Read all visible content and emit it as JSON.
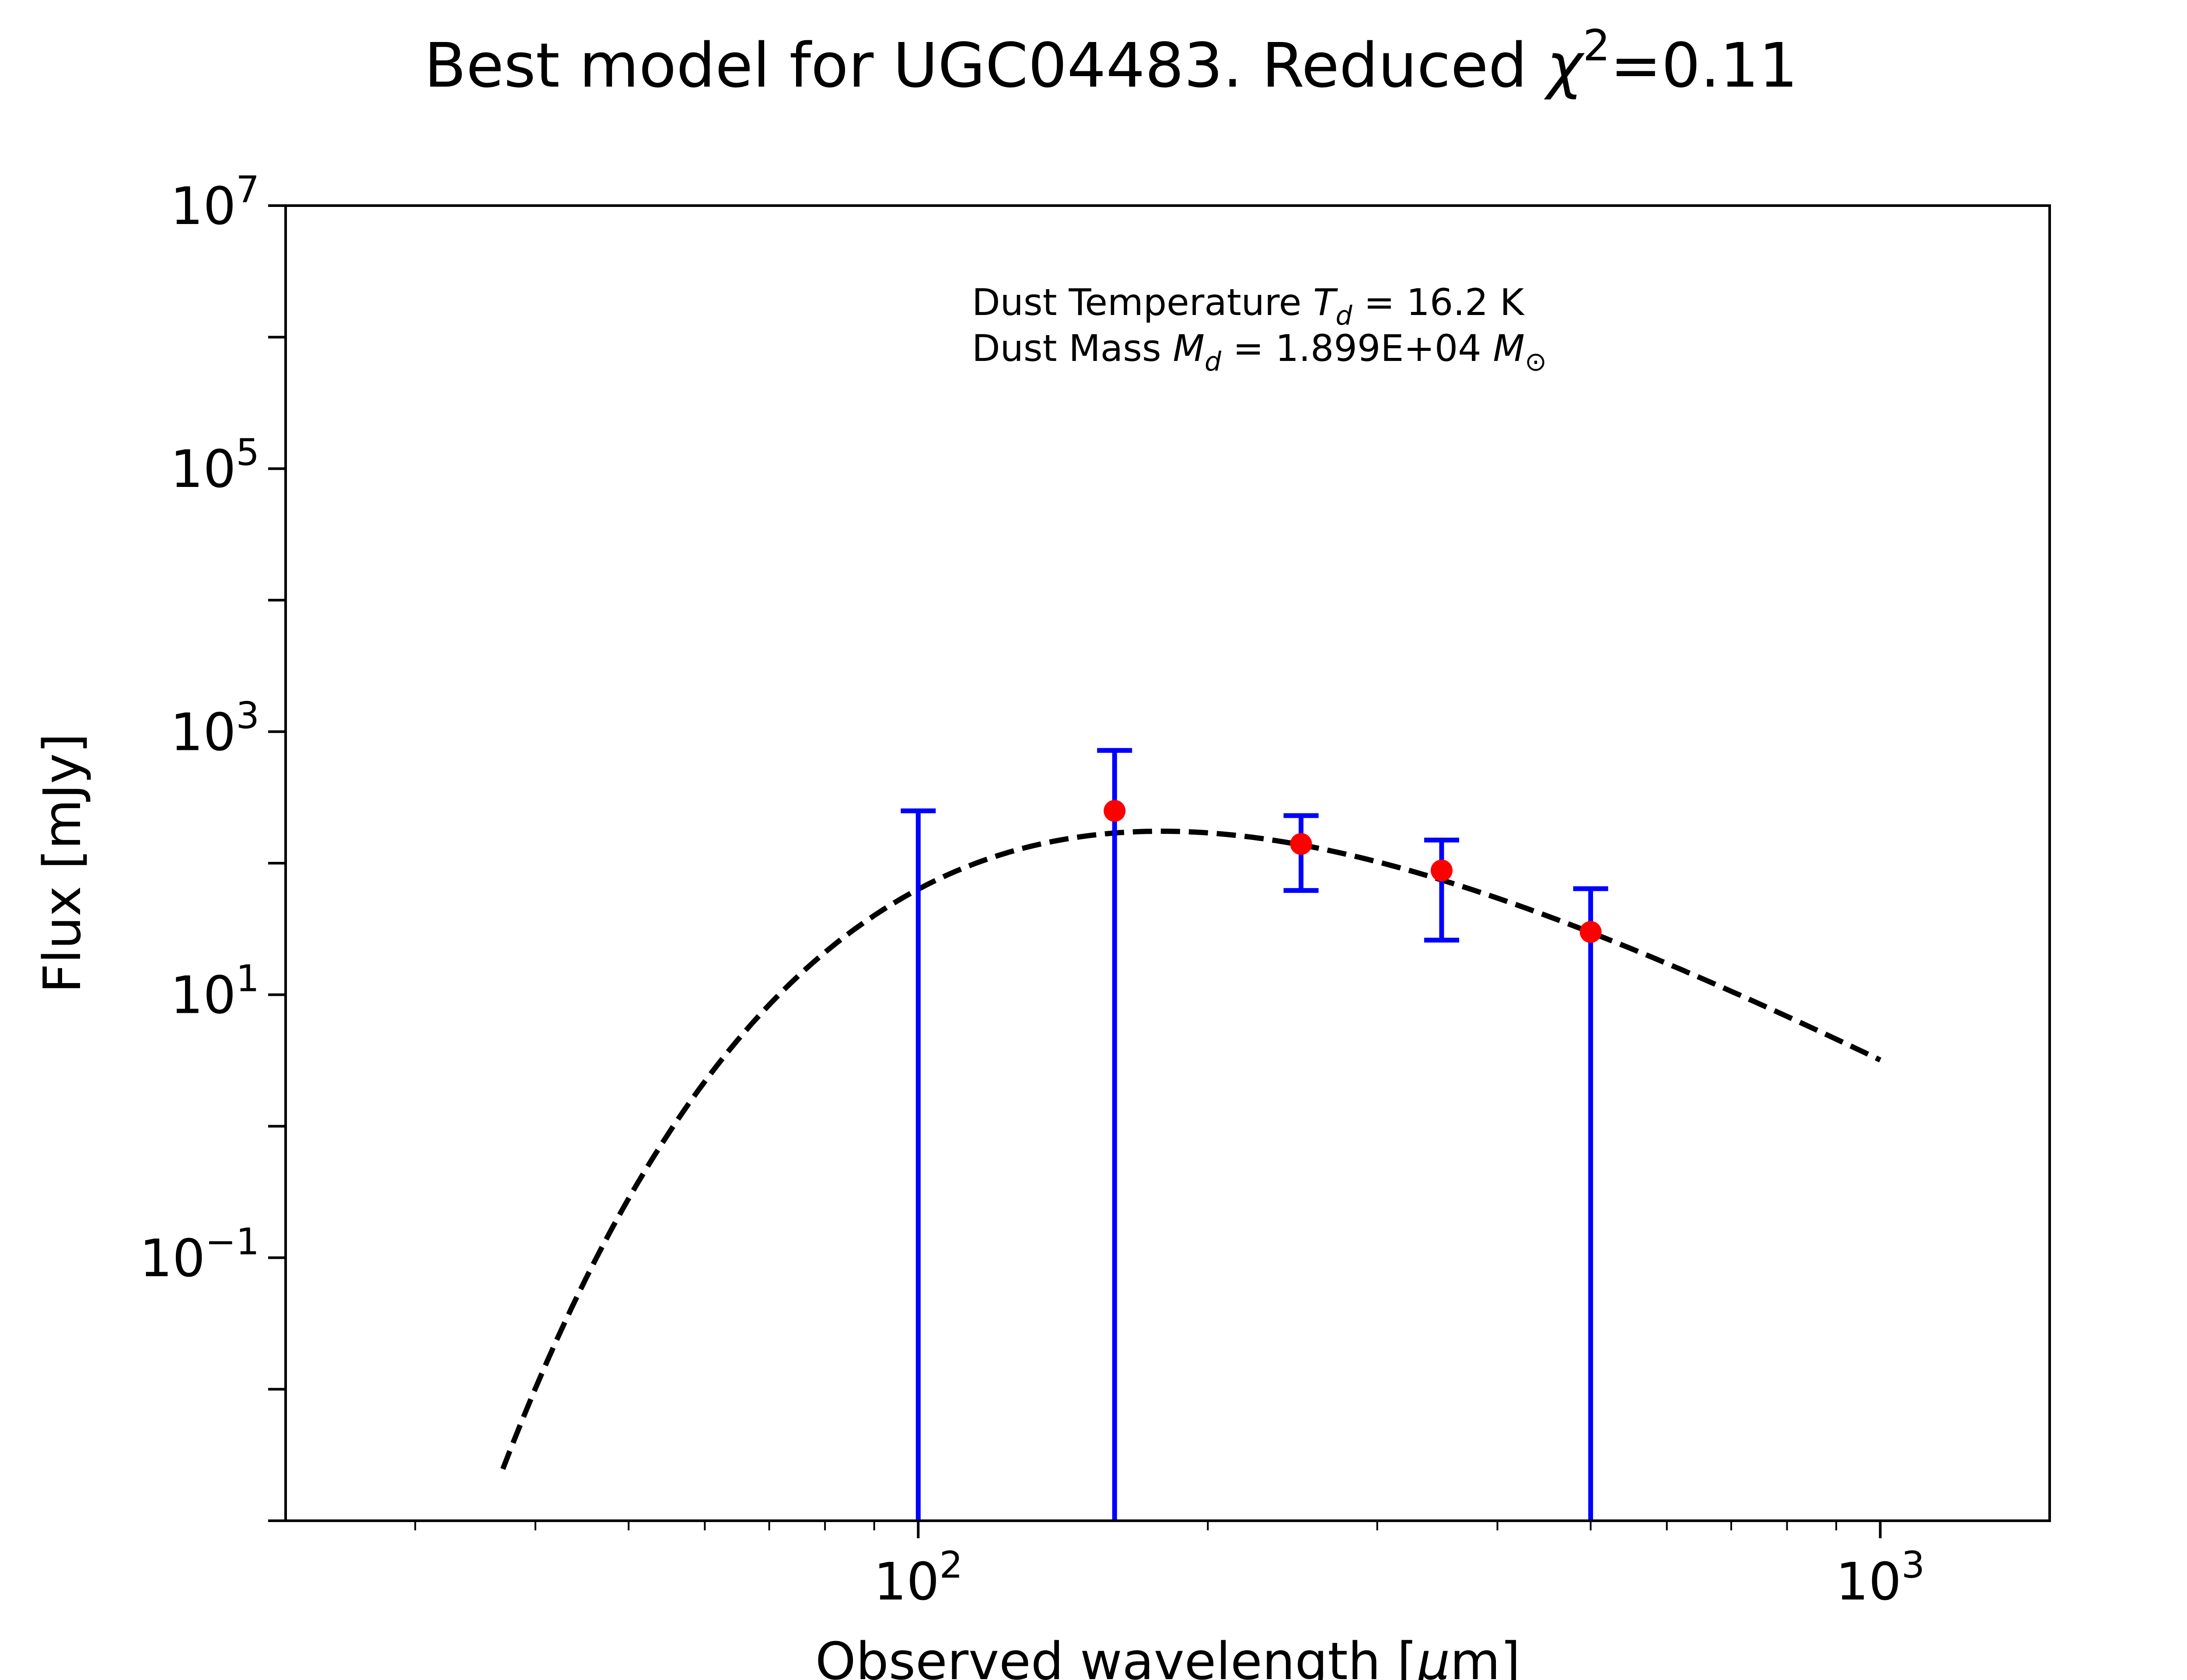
{
  "chart_data": {
    "type": "scatter",
    "title": {
      "prefix": "Best model for UGC04483. Reduced ",
      "chi_symbol": "χ",
      "superscript": "2",
      "value": "=0.11"
    },
    "xlabel": {
      "prefix": "Observed wavelength [",
      "symbol": "μ",
      "suffix": "m]"
    },
    "ylabel": "Flux [mJy]",
    "xscale": "log",
    "yscale": "log",
    "xlim": [
      22,
      1500
    ],
    "ylim": [
      0.001,
      10000000
    ],
    "grid": false,
    "x_major_ticks": [
      {
        "value": 100,
        "base": "10",
        "exp": "2"
      },
      {
        "value": 1000,
        "base": "10",
        "exp": "3"
      }
    ],
    "y_major_ticks": [
      {
        "value": 0.1,
        "base": "10",
        "exp": "−1"
      },
      {
        "value": 10,
        "base": "10",
        "exp": "1"
      },
      {
        "value": 1000,
        "base": "10",
        "exp": "3"
      },
      {
        "value": 100000,
        "base": "10",
        "exp": "5"
      },
      {
        "value": 10000000,
        "base": "10",
        "exp": "7"
      }
    ],
    "annotation": {
      "line1": {
        "prefix": "Dust Temperature ",
        "sym": "T",
        "sub": "d",
        "value": " = 16.2 K"
      },
      "line2": {
        "prefix": "Dust Mass ",
        "sym": "M",
        "sub": "d",
        "value": " = 1.899E+04 ",
        "unit_sym": "M",
        "unit_sub": "⊙"
      }
    },
    "observations": {
      "color": "#ff0000",
      "errorbar_color": "#0000ff",
      "points": [
        {
          "x": 100,
          "y": null,
          "y_low": 0.001,
          "y_high": 250
        },
        {
          "x": 160,
          "y": 250,
          "y_low": 0.001,
          "y_high": 720
        },
        {
          "x": 250,
          "y": 140,
          "y_low": 62,
          "y_high": 230
        },
        {
          "x": 350,
          "y": 88,
          "y_low": 26,
          "y_high": 150
        },
        {
          "x": 500,
          "y": 30,
          "y_low": 0.001,
          "y_high": 64
        }
      ]
    },
    "model": {
      "type": "dashed-line",
      "color": "#000000",
      "temperature_K": 16.2,
      "beta": 2,
      "x_range": [
        37,
        1000
      ],
      "peak_flux": 175
    }
  }
}
